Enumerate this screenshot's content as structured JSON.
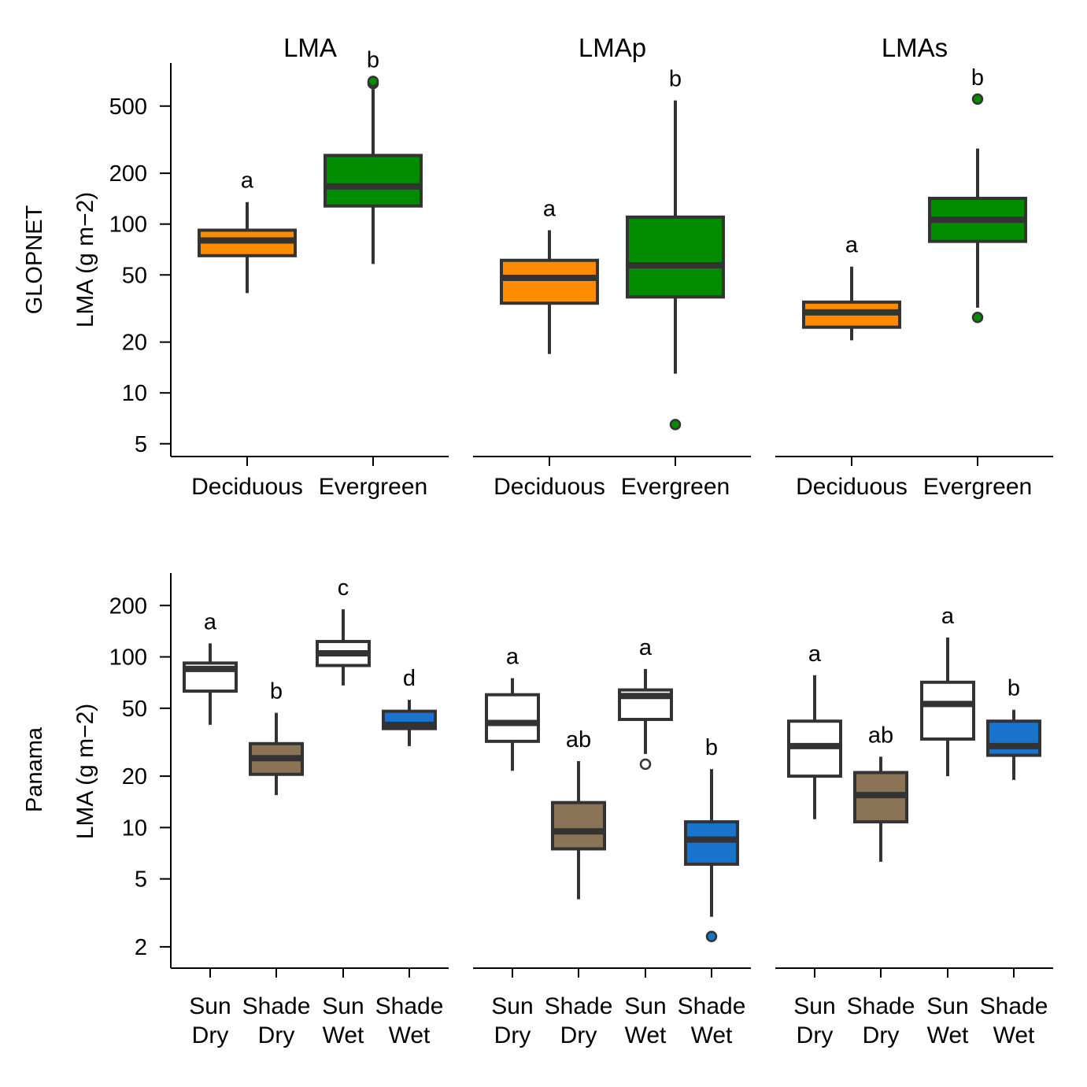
{
  "figure": {
    "panel_titles": [
      "LMA",
      "LMAp",
      "LMAs"
    ],
    "colors": {
      "deciduous": "#ff8c00",
      "evergreen": "#008b00",
      "sun": "#ffffff",
      "shade_dry": "#8b7355",
      "shade_wet": "#1874cd",
      "stroke": "#333333"
    }
  },
  "chart_data": [
    {
      "type": "boxplot",
      "row_label": "GLOPNET",
      "ylabel": "LMA (g m−2)",
      "yscale": "log",
      "ylim": [
        4.2,
        900
      ],
      "yticks": [
        5,
        10,
        20,
        50,
        100,
        200,
        500
      ],
      "categories": [
        [
          "Deciduous"
        ],
        [
          "Evergreen"
        ]
      ],
      "panels": [
        {
          "title": "LMA",
          "boxes": [
            {
              "category": "Deciduous",
              "fill": "#ff8c00",
              "whisker_low": 39,
              "q1": 65,
              "median": 80,
              "q3": 92,
              "whisker_high": 135,
              "outliers": [],
              "letter": "a"
            },
            {
              "category": "Evergreen",
              "fill": "#008b00",
              "whisker_low": 58,
              "q1": 128,
              "median": 167,
              "q3": 255,
              "whisker_high": 630,
              "outliers": [
                680,
                700
              ],
              "letter": "b"
            }
          ]
        },
        {
          "title": "LMAp",
          "boxes": [
            {
              "category": "Deciduous",
              "fill": "#ff8c00",
              "whisker_low": 17,
              "q1": 34,
              "median": 48,
              "q3": 61,
              "whisker_high": 92,
              "outliers": [],
              "letter": "a"
            },
            {
              "category": "Evergreen",
              "fill": "#008b00",
              "whisker_low": 13,
              "q1": 37,
              "median": 57,
              "q3": 110,
              "whisker_high": 540,
              "outliers": [
                6.5
              ],
              "letter": "b"
            }
          ]
        },
        {
          "title": "LMAs",
          "boxes": [
            {
              "category": "Deciduous",
              "fill": "#ff8c00",
              "whisker_low": 20.5,
              "q1": 24.5,
              "median": 30,
              "q3": 34.5,
              "whisker_high": 56,
              "outliers": [],
              "letter": "a"
            },
            {
              "category": "Evergreen",
              "fill": "#008b00",
              "whisker_low": 32,
              "q1": 79,
              "median": 106,
              "q3": 142,
              "whisker_high": 280,
              "outliers": [
                28,
                550
              ],
              "letter": "b"
            }
          ]
        }
      ]
    },
    {
      "type": "boxplot",
      "row_label": "Panama",
      "ylabel": "LMA (g m−2)",
      "yscale": "log",
      "ylim": [
        1.5,
        310
      ],
      "yticks": [
        2,
        5,
        10,
        20,
        50,
        100,
        200
      ],
      "categories": [
        [
          "Sun",
          "Dry"
        ],
        [
          "Shade",
          "Dry"
        ],
        [
          "Sun",
          "Wet"
        ],
        [
          "Shade",
          "Wet"
        ]
      ],
      "panels": [
        {
          "title": "LMA",
          "boxes": [
            {
              "category": "Sun Dry",
              "fill": "#ffffff",
              "whisker_low": 40,
              "q1": 63,
              "median": 85,
              "q3": 92,
              "whisker_high": 120,
              "outliers": [],
              "letter": "a"
            },
            {
              "category": "Shade Dry",
              "fill": "#8b7355",
              "whisker_low": 15.5,
              "q1": 20.5,
              "median": 25.5,
              "q3": 31,
              "whisker_high": 47,
              "outliers": [],
              "letter": "b"
            },
            {
              "category": "Sun Wet",
              "fill": "#ffffff",
              "whisker_low": 68,
              "q1": 89,
              "median": 105,
              "q3": 123,
              "whisker_high": 190,
              "outliers": [],
              "letter": "c"
            },
            {
              "category": "Shade Wet",
              "fill": "#1874cd",
              "whisker_low": 30,
              "q1": 38,
              "median": 40,
              "q3": 48,
              "whisker_high": 56,
              "outliers": [],
              "letter": "d"
            }
          ]
        },
        {
          "title": "LMAp",
          "boxes": [
            {
              "category": "Sun Dry",
              "fill": "#ffffff",
              "whisker_low": 21.5,
              "q1": 32,
              "median": 41,
              "q3": 60,
              "whisker_high": 75,
              "outliers": [],
              "letter": "a"
            },
            {
              "category": "Shade Dry",
              "fill": "#8b7355",
              "whisker_low": 3.8,
              "q1": 7.5,
              "median": 9.5,
              "q3": 14,
              "whisker_high": 24.5,
              "outliers": [],
              "letter": "ab"
            },
            {
              "category": "Sun Wet",
              "fill": "#ffffff",
              "whisker_low": 27,
              "q1": 43,
              "median": 59,
              "q3": 64,
              "whisker_high": 85,
              "outliers": [
                23.5
              ],
              "letter": "a"
            },
            {
              "category": "Shade Wet",
              "fill": "#1874cd",
              "whisker_low": 3.0,
              "q1": 6.1,
              "median": 8.5,
              "q3": 10.8,
              "whisker_high": 22,
              "outliers": [
                2.3
              ],
              "letter": "b"
            }
          ]
        },
        {
          "title": "LMAs",
          "boxes": [
            {
              "category": "Sun Dry",
              "fill": "#ffffff",
              "whisker_low": 11.2,
              "q1": 20,
              "median": 30,
              "q3": 42,
              "whisker_high": 78,
              "outliers": [],
              "letter": "a"
            },
            {
              "category": "Shade Dry",
              "fill": "#8b7355",
              "whisker_low": 6.3,
              "q1": 10.8,
              "median": 15.5,
              "q3": 21,
              "whisker_high": 26,
              "outliers": [],
              "letter": "ab"
            },
            {
              "category": "Sun Wet",
              "fill": "#ffffff",
              "whisker_low": 20,
              "q1": 33,
              "median": 53,
              "q3": 71,
              "whisker_high": 130,
              "outliers": [],
              "letter": "a"
            },
            {
              "category": "Shade Wet",
              "fill": "#1874cd",
              "whisker_low": 19,
              "q1": 26.5,
              "median": 30,
              "q3": 42,
              "whisker_high": 49,
              "outliers": [],
              "letter": "b"
            }
          ]
        }
      ]
    }
  ]
}
